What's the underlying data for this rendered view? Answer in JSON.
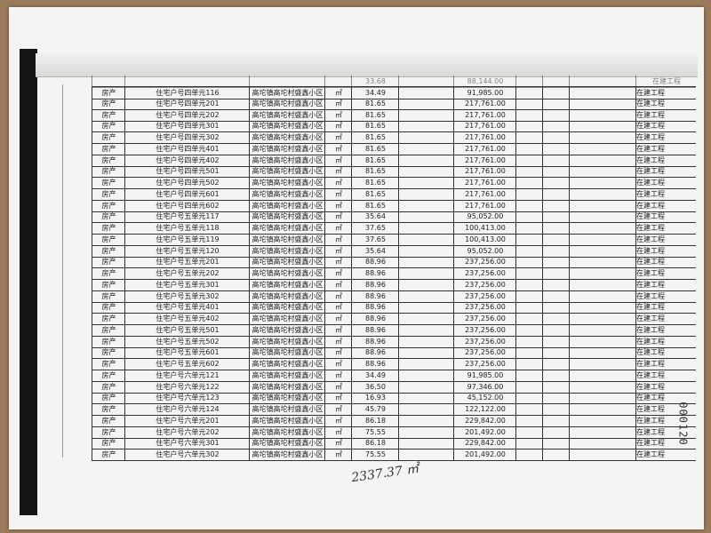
{
  "partial_row": [
    "33.68",
    "88,144.00",
    "在建工程"
  ],
  "table": {
    "rows": [
      [
        "房产",
        "住宅户号四单元116",
        "高坨镇高坨村盛鑫小区",
        "㎡",
        "34.49",
        "91,985.00",
        "在建工程"
      ],
      [
        "房产",
        "住宅户号四单元201",
        "高坨镇高坨村盛鑫小区",
        "㎡",
        "81.65",
        "217,761.00",
        "在建工程"
      ],
      [
        "房产",
        "住宅户号四单元202",
        "高坨镇高坨村盛鑫小区",
        "㎡",
        "81.65",
        "217,761.00",
        "在建工程"
      ],
      [
        "房产",
        "住宅户号四单元301",
        "高坨镇高坨村盛鑫小区",
        "㎡",
        "81.65",
        "217,761.00",
        "在建工程"
      ],
      [
        "房产",
        "住宅户号四单元302",
        "高坨镇高坨村盛鑫小区",
        "㎡",
        "81.65",
        "217,761.00",
        "在建工程"
      ],
      [
        "房产",
        "住宅户号四单元401",
        "高坨镇高坨村盛鑫小区",
        "㎡",
        "81.65",
        "217,761.00",
        "在建工程"
      ],
      [
        "房产",
        "住宅户号四单元402",
        "高坨镇高坨村盛鑫小区",
        "㎡",
        "81.65",
        "217,761.00",
        "在建工程"
      ],
      [
        "房产",
        "住宅户号四单元501",
        "高坨镇高坨村盛鑫小区",
        "㎡",
        "81.65",
        "217,761.00",
        "在建工程"
      ],
      [
        "房产",
        "住宅户号四单元502",
        "高坨镇高坨村盛鑫小区",
        "㎡",
        "81.65",
        "217,761.00",
        "在建工程"
      ],
      [
        "房产",
        "住宅户号四单元601",
        "高坨镇高坨村盛鑫小区",
        "㎡",
        "81.65",
        "217,761.00",
        "在建工程"
      ],
      [
        "房产",
        "住宅户号四单元602",
        "高坨镇高坨村盛鑫小区",
        "㎡",
        "81.65",
        "217,761.00",
        "在建工程"
      ],
      [
        "房产",
        "住宅户号五单元117",
        "高坨镇高坨村盛鑫小区",
        "㎡",
        "35.64",
        "95,052.00",
        "在建工程"
      ],
      [
        "房产",
        "住宅户号五单元118",
        "高坨镇高坨村盛鑫小区",
        "㎡",
        "37.65",
        "100,413.00",
        "在建工程"
      ],
      [
        "房产",
        "住宅户号五单元119",
        "高坨镇高坨村盛鑫小区",
        "㎡",
        "37.65",
        "100,413.00",
        "在建工程"
      ],
      [
        "房产",
        "住宅户号五单元120",
        "高坨镇高坨村盛鑫小区",
        "㎡",
        "35.64",
        "95,052.00",
        "在建工程"
      ],
      [
        "房产",
        "住宅户号五单元201",
        "高坨镇高坨村盛鑫小区",
        "㎡",
        "88.96",
        "237,256.00",
        "在建工程"
      ],
      [
        "房产",
        "住宅户号五单元202",
        "高坨镇高坨村盛鑫小区",
        "㎡",
        "88.96",
        "237,256.00",
        "在建工程"
      ],
      [
        "房产",
        "住宅户号五单元301",
        "高坨镇高坨村盛鑫小区",
        "㎡",
        "88.96",
        "237,256.00",
        "在建工程"
      ],
      [
        "房产",
        "住宅户号五单元302",
        "高坨镇高坨村盛鑫小区",
        "㎡",
        "88.96",
        "237,256.00",
        "在建工程"
      ],
      [
        "房产",
        "住宅户号五单元401",
        "高坨镇高坨村盛鑫小区",
        "㎡",
        "88.96",
        "237,256.00",
        "在建工程"
      ],
      [
        "房产",
        "住宅户号五单元402",
        "高坨镇高坨村盛鑫小区",
        "㎡",
        "88.96",
        "237,256.00",
        "在建工程"
      ],
      [
        "房产",
        "住宅户号五单元501",
        "高坨镇高坨村盛鑫小区",
        "㎡",
        "88.96",
        "237,256.00",
        "在建工程"
      ],
      [
        "房产",
        "住宅户号五单元502",
        "高坨镇高坨村盛鑫小区",
        "㎡",
        "88.96",
        "237,256.00",
        "在建工程"
      ],
      [
        "房产",
        "住宅户号五单元601",
        "高坨镇高坨村盛鑫小区",
        "㎡",
        "88.96",
        "237,256.00",
        "在建工程"
      ],
      [
        "房产",
        "住宅户号五单元602",
        "高坨镇高坨村盛鑫小区",
        "㎡",
        "88.96",
        "237,256.00",
        "在建工程"
      ],
      [
        "房产",
        "住宅户号六单元121",
        "高坨镇高坨村盛鑫小区",
        "㎡",
        "34.49",
        "91,985.00",
        "在建工程"
      ],
      [
        "房产",
        "住宅户号六单元122",
        "高坨镇高坨村盛鑫小区",
        "㎡",
        "36.50",
        "97,346.00",
        "在建工程"
      ],
      [
        "房产",
        "住宅户号六单元123",
        "高坨镇高坨村盛鑫小区",
        "㎡",
        "16.93",
        "45,152.00",
        "在建工程"
      ],
      [
        "房产",
        "住宅户号六单元124",
        "高坨镇高坨村盛鑫小区",
        "㎡",
        "45.79",
        "122,122.00",
        "在建工程"
      ],
      [
        "房产",
        "住宅户号六单元201",
        "高坨镇高坨村盛鑫小区",
        "㎡",
        "86.18",
        "229,842.00",
        "在建工程"
      ],
      [
        "房产",
        "住宅户号六单元202",
        "高坨镇高坨村盛鑫小区",
        "㎡",
        "75.55",
        "201,492.00",
        "在建工程"
      ],
      [
        "房产",
        "住宅户号六单元301",
        "高坨镇高坨村盛鑫小区",
        "㎡",
        "86.18",
        "229,842.00",
        "在建工程"
      ],
      [
        "房产",
        "住宅户号六单元302",
        "高坨镇高坨村盛鑫小区",
        "㎡",
        "75.55",
        "201,492.00",
        "在建工程"
      ]
    ]
  },
  "handwriting": "2337.37 ㎡",
  "stamp": "000120"
}
